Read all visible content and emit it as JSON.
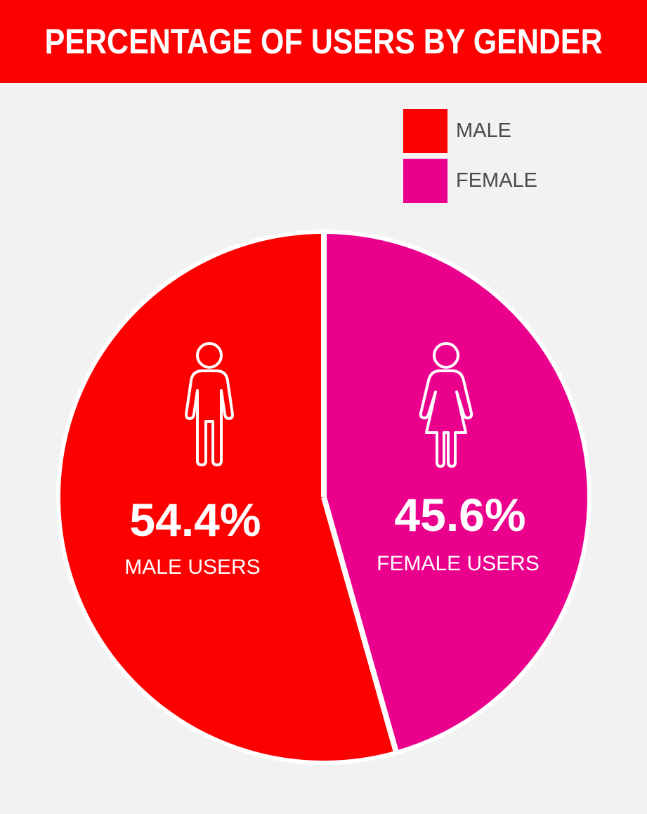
{
  "header": {
    "title": "PERCENTAGE OF USERS BY GENDER"
  },
  "colors": {
    "header_bg": "#fd0000",
    "background": "#f2f2f2",
    "male": "#fd0000",
    "female": "#ea008c",
    "text_light": "#ffffff",
    "legend_text": "#4a4a4a"
  },
  "legend": [
    {
      "label": "MALE",
      "color": "#fd0000"
    },
    {
      "label": "FEMALE",
      "color": "#ea008c"
    }
  ],
  "icons": {
    "male": "male-person-icon",
    "female": "female-person-icon"
  },
  "chart_data": {
    "type": "pie",
    "title": "PERCENTAGE OF USERS BY GENDER",
    "legend_position": "top-right",
    "slices": [
      {
        "label": "MALE",
        "value": 54.4,
        "value_label": "54.4%",
        "caption": "MALE USERS",
        "color": "#fd0000"
      },
      {
        "label": "FEMALE",
        "value": 45.6,
        "value_label": "45.6%",
        "caption": "FEMALE USERS",
        "color": "#ea008c"
      }
    ]
  }
}
